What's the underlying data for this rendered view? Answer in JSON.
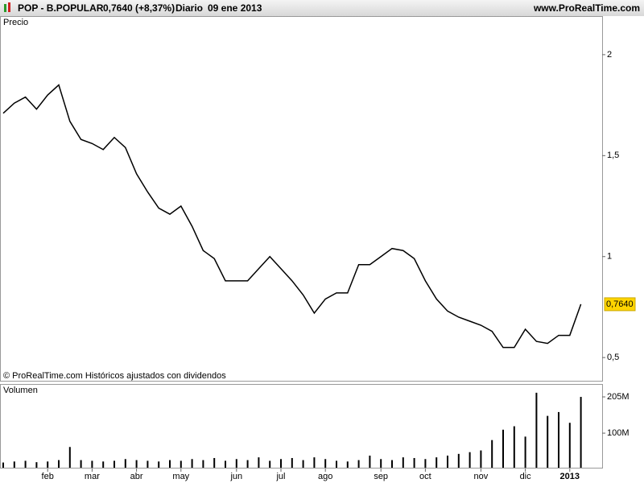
{
  "header": {
    "symbol": "POP - B.POPULAR",
    "quote": "0,7640 (+8,37%)",
    "period": "Diario",
    "date": "09 ene 2013",
    "site": "www.ProRealTime.com"
  },
  "chart_data": [
    {
      "type": "line",
      "title": "Precio",
      "note": "© ProRealTime.com  Históricos ajustados con dividendos",
      "color": "#000000",
      "values": [
        1.71,
        1.76,
        1.79,
        1.73,
        1.8,
        1.85,
        1.67,
        1.58,
        1.56,
        1.53,
        1.59,
        1.54,
        1.41,
        1.32,
        1.24,
        1.21,
        1.25,
        1.15,
        1.03,
        0.99,
        0.88,
        0.88,
        0.88,
        0.94,
        1.0,
        0.94,
        0.88,
        0.81,
        0.72,
        0.79,
        0.82,
        0.82,
        0.96,
        0.96,
        1.0,
        1.04,
        1.03,
        0.99,
        0.88,
        0.79,
        0.73,
        0.7,
        0.68,
        0.66,
        0.63,
        0.55,
        0.55,
        0.64,
        0.58,
        0.57,
        0.61,
        0.61,
        0.764
      ],
      "last_price": {
        "value": 0.764,
        "label": "0,7640"
      },
      "ylim": [
        0.385,
        2.187
      ],
      "yticks": [
        {
          "value": 0.5,
          "label": "0,5"
        },
        1,
        {
          "value": 1.5,
          "label": "1,5"
        },
        2
      ],
      "grid": false
    },
    {
      "type": "bar",
      "title": "Volumen",
      "color": "#000000",
      "categories": [
        null,
        null,
        null,
        null,
        "feb",
        null,
        null,
        null,
        "mar",
        null,
        null,
        null,
        "abr",
        null,
        null,
        null,
        "may",
        null,
        null,
        null,
        null,
        "jun",
        null,
        null,
        null,
        "jul",
        null,
        null,
        null,
        "ago",
        null,
        null,
        null,
        null,
        "sep",
        null,
        null,
        null,
        "oct",
        null,
        null,
        null,
        null,
        "nov",
        null,
        null,
        null,
        "dic",
        null,
        null,
        null,
        "2013",
        null
      ],
      "values": [
        15,
        18,
        20,
        16,
        18,
        22,
        60,
        22,
        20,
        18,
        20,
        25,
        22,
        20,
        18,
        22,
        20,
        25,
        22,
        28,
        20,
        25,
        22,
        30,
        20,
        25,
        28,
        22,
        30,
        25,
        20,
        18,
        22,
        35,
        25,
        22,
        30,
        28,
        25,
        30,
        35,
        40,
        45,
        50,
        80,
        110,
        120,
        90,
        217,
        150,
        161,
        130,
        205
      ],
      "ylim": [
        0,
        240
      ],
      "yticks": [
        {
          "value": 100,
          "label": "100M"
        },
        {
          "value": 205,
          "label": "205M"
        }
      ],
      "grid": false
    }
  ]
}
